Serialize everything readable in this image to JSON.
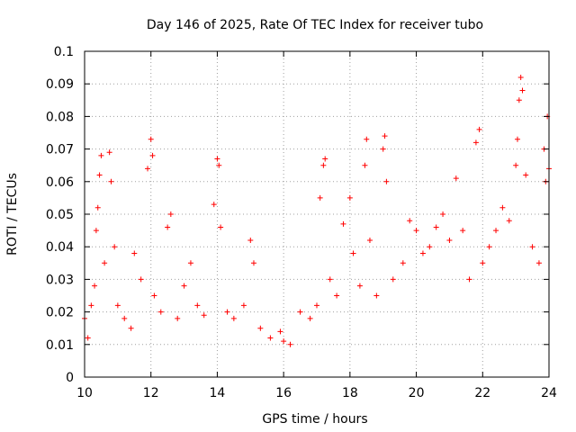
{
  "chart_data": {
    "type": "scatter",
    "title": "Day 146 of 2025, Rate Of TEC Index for receiver tubo",
    "xlabel": "GPS time / hours",
    "ylabel": "ROTI / TECUs",
    "xlim": [
      10,
      24
    ],
    "ylim": [
      0,
      0.1
    ],
    "x_ticks": [
      "10",
      "12",
      "14",
      "16",
      "18",
      "20",
      "22",
      "24"
    ],
    "y_ticks": [
      "0",
      "0.01",
      "0.02",
      "0.03",
      "0.04",
      "0.05",
      "0.06",
      "0.07",
      "0.08",
      "0.09",
      "0.1"
    ],
    "grid": true,
    "marker": "+",
    "color": "#ff0000",
    "series": [
      {
        "name": "ROTI",
        "points": [
          [
            10.0,
            0.018
          ],
          [
            10.1,
            0.012
          ],
          [
            10.2,
            0.022
          ],
          [
            10.3,
            0.028
          ],
          [
            10.35,
            0.045
          ],
          [
            10.4,
            0.052
          ],
          [
            10.45,
            0.062
          ],
          [
            10.5,
            0.068
          ],
          [
            10.6,
            0.035
          ],
          [
            10.75,
            0.069
          ],
          [
            10.8,
            0.06
          ],
          [
            10.9,
            0.04
          ],
          [
            11.0,
            0.022
          ],
          [
            11.2,
            0.018
          ],
          [
            11.4,
            0.015
          ],
          [
            11.5,
            0.038
          ],
          [
            11.7,
            0.03
          ],
          [
            11.9,
            0.064
          ],
          [
            12.0,
            0.073
          ],
          [
            12.05,
            0.068
          ],
          [
            12.1,
            0.025
          ],
          [
            12.3,
            0.02
          ],
          [
            12.5,
            0.046
          ],
          [
            12.6,
            0.05
          ],
          [
            12.8,
            0.018
          ],
          [
            13.0,
            0.028
          ],
          [
            13.2,
            0.035
          ],
          [
            13.4,
            0.022
          ],
          [
            13.6,
            0.019
          ],
          [
            13.9,
            0.053
          ],
          [
            14.0,
            0.067
          ],
          [
            14.05,
            0.065
          ],
          [
            14.1,
            0.046
          ],
          [
            14.3,
            0.02
          ],
          [
            14.5,
            0.018
          ],
          [
            14.8,
            0.022
          ],
          [
            15.0,
            0.042
          ],
          [
            15.1,
            0.035
          ],
          [
            15.3,
            0.015
          ],
          [
            15.6,
            0.012
          ],
          [
            15.9,
            0.014
          ],
          [
            16.0,
            0.011
          ],
          [
            16.2,
            0.01
          ],
          [
            16.5,
            0.02
          ],
          [
            16.8,
            0.018
          ],
          [
            17.0,
            0.022
          ],
          [
            17.1,
            0.055
          ],
          [
            17.2,
            0.065
          ],
          [
            17.25,
            0.067
          ],
          [
            17.4,
            0.03
          ],
          [
            17.6,
            0.025
          ],
          [
            17.8,
            0.047
          ],
          [
            18.0,
            0.055
          ],
          [
            18.1,
            0.038
          ],
          [
            18.3,
            0.028
          ],
          [
            18.45,
            0.065
          ],
          [
            18.5,
            0.073
          ],
          [
            18.6,
            0.042
          ],
          [
            18.8,
            0.025
          ],
          [
            19.0,
            0.07
          ],
          [
            19.05,
            0.074
          ],
          [
            19.1,
            0.06
          ],
          [
            19.3,
            0.03
          ],
          [
            19.6,
            0.035
          ],
          [
            19.8,
            0.048
          ],
          [
            20.0,
            0.045
          ],
          [
            20.2,
            0.038
          ],
          [
            20.4,
            0.04
          ],
          [
            20.6,
            0.046
          ],
          [
            20.8,
            0.05
          ],
          [
            21.0,
            0.042
          ],
          [
            21.2,
            0.061
          ],
          [
            21.4,
            0.045
          ],
          [
            21.6,
            0.03
          ],
          [
            21.8,
            0.072
          ],
          [
            21.9,
            0.076
          ],
          [
            22.0,
            0.035
          ],
          [
            22.2,
            0.04
          ],
          [
            22.4,
            0.045
          ],
          [
            22.6,
            0.052
          ],
          [
            22.8,
            0.048
          ],
          [
            23.0,
            0.065
          ],
          [
            23.05,
            0.073
          ],
          [
            23.1,
            0.085
          ],
          [
            23.15,
            0.092
          ],
          [
            23.2,
            0.088
          ],
          [
            23.3,
            0.062
          ],
          [
            23.5,
            0.04
          ],
          [
            23.7,
            0.035
          ],
          [
            23.85,
            0.07
          ],
          [
            23.9,
            0.06
          ],
          [
            23.95,
            0.08
          ],
          [
            24.0,
            0.064
          ]
        ]
      }
    ]
  }
}
